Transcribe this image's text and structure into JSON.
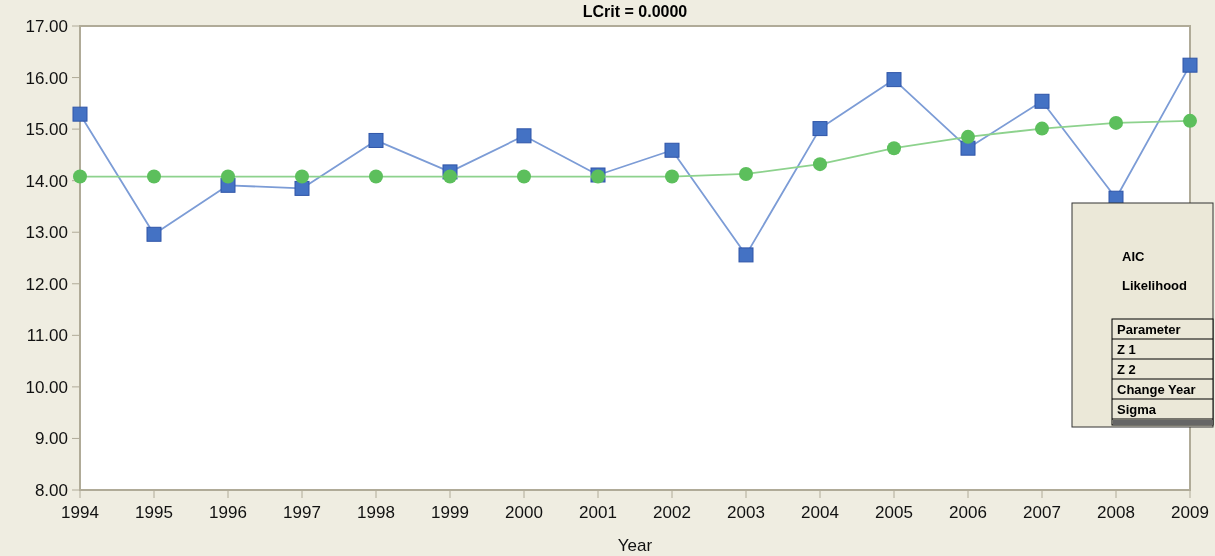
{
  "chart_data": {
    "type": "line",
    "title": "LCrit = 0.0000",
    "xlabel": "Year",
    "x": [
      1994,
      1995,
      1996,
      1997,
      1998,
      1999,
      2000,
      2001,
      2002,
      2003,
      2004,
      2005,
      2006,
      2007,
      2008,
      2009
    ],
    "series": [
      {
        "color": "#4472c4",
        "marker": "square",
        "values": [
          15.29,
          12.96,
          13.91,
          13.85,
          14.78,
          14.17,
          14.87,
          14.11,
          14.59,
          12.56,
          15.01,
          15.96,
          14.63,
          15.54,
          13.66,
          16.24
        ]
      },
      {
        "color": "#5cbf5c",
        "marker": "circle",
        "values": [
          14.08,
          14.08,
          14.08,
          14.08,
          14.08,
          14.08,
          14.08,
          14.08,
          14.08,
          14.13,
          14.32,
          14.63,
          14.85,
          15.01,
          15.12,
          15.16
        ]
      }
    ],
    "xlim": [
      1994,
      2009
    ],
    "xticks": [
      1994,
      1995,
      1996,
      1997,
      1998,
      1999,
      2000,
      2001,
      2002,
      2003,
      2004,
      2005,
      2006,
      2007,
      2008,
      2009
    ],
    "ylim": [
      8,
      17
    ],
    "yticks": [
      {
        "value": 8,
        "label": "8.00"
      },
      {
        "value": 9,
        "label": "9.00"
      },
      {
        "value": 10,
        "label": "10.00"
      },
      {
        "value": 11,
        "label": "11.00"
      },
      {
        "value": 12,
        "label": "12.00"
      },
      {
        "value": 13,
        "label": "13.00"
      },
      {
        "value": 14,
        "label": "14.00"
      },
      {
        "value": 15,
        "label": "15.00"
      },
      {
        "value": 16,
        "label": "16.00"
      },
      {
        "value": 17,
        "label": "17.00"
      }
    ],
    "annotations": [
      "AIC",
      "Likelihood",
      "Parameter",
      "Z 1",
      "Z 2",
      "Change Year",
      "Sigma"
    ],
    "grid": false
  }
}
